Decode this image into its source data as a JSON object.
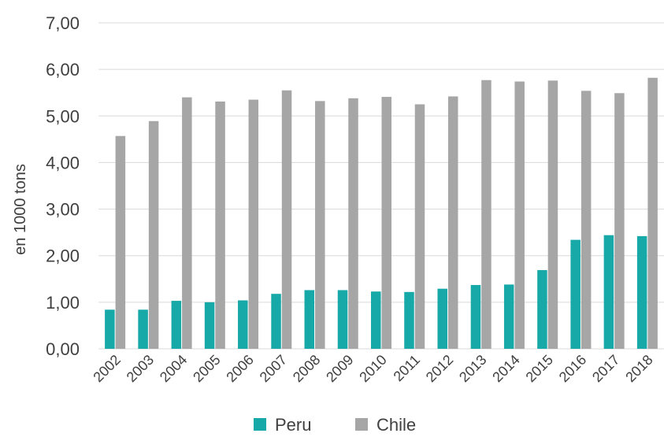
{
  "chart_data": {
    "type": "bar",
    "title": "",
    "xlabel": "",
    "ylabel": "en 1000 tons",
    "ylim": [
      0,
      7
    ],
    "yticks": [
      "0,00",
      "1,00",
      "2,00",
      "3,00",
      "4,00",
      "5,00",
      "6,00",
      "7,00"
    ],
    "grid": true,
    "legend_position": "bottom",
    "categories": [
      "2002",
      "2003",
      "2004",
      "2005",
      "2006",
      "2007",
      "2008",
      "2009",
      "2010",
      "2011",
      "2012",
      "2013",
      "2014",
      "2015",
      "2016",
      "2017",
      "2018"
    ],
    "series": [
      {
        "name": "Peru",
        "color": "#17a8a8",
        "values": [
          0.84,
          0.84,
          1.03,
          1.0,
          1.04,
          1.18,
          1.26,
          1.26,
          1.23,
          1.22,
          1.29,
          1.37,
          1.38,
          1.69,
          2.34,
          2.44,
          2.42
        ]
      },
      {
        "name": "Chile",
        "color": "#a6a6a6",
        "values": [
          4.57,
          4.89,
          5.4,
          5.31,
          5.35,
          5.55,
          5.32,
          5.38,
          5.41,
          5.25,
          5.42,
          5.77,
          5.74,
          5.76,
          5.54,
          5.49,
          5.82
        ]
      }
    ]
  }
}
